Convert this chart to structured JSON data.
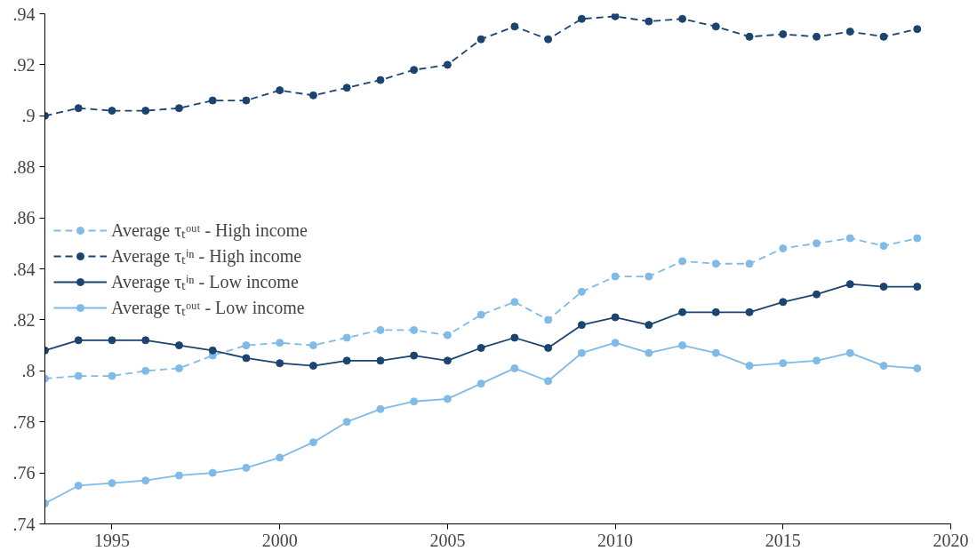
{
  "chart_data": {
    "type": "line",
    "x": [
      1993,
      1994,
      1995,
      1996,
      1997,
      1998,
      1999,
      2000,
      2001,
      2002,
      2003,
      2004,
      2005,
      2006,
      2007,
      2008,
      2009,
      2010,
      2011,
      2012,
      2013,
      2014,
      2015,
      2016,
      2017,
      2018,
      2019
    ],
    "series": [
      {
        "name": "Average τₜᵒᵘᵗ - High income",
        "color": "#7fbbe6",
        "line_style": "dashed",
        "values": [
          0.797,
          0.798,
          0.798,
          0.8,
          0.801,
          0.806,
          0.81,
          0.811,
          0.81,
          0.813,
          0.816,
          0.816,
          0.814,
          0.822,
          0.827,
          0.82,
          0.831,
          0.837,
          0.837,
          0.843,
          0.842,
          0.842,
          0.848,
          0.85,
          0.852,
          0.849,
          0.852
        ]
      },
      {
        "name": "Average τₜⁱⁿ - High income",
        "color": "#1b4470",
        "line_style": "dashed",
        "values": [
          0.9,
          0.903,
          0.902,
          0.902,
          0.903,
          0.906,
          0.906,
          0.91,
          0.908,
          0.911,
          0.914,
          0.918,
          0.92,
          0.93,
          0.935,
          0.93,
          0.938,
          0.939,
          0.937,
          0.938,
          0.935,
          0.931,
          0.932,
          0.931,
          0.933,
          0.931,
          0.934
        ]
      },
      {
        "name": "Average τₜⁱⁿ - Low income",
        "color": "#1b4470",
        "line_style": "solid",
        "values": [
          0.808,
          0.812,
          0.812,
          0.812,
          0.81,
          0.808,
          0.805,
          0.803,
          0.802,
          0.804,
          0.804,
          0.806,
          0.804,
          0.809,
          0.813,
          0.809,
          0.818,
          0.821,
          0.818,
          0.823,
          0.823,
          0.823,
          0.827,
          0.83,
          0.834,
          0.833,
          0.833
        ]
      },
      {
        "name": "Average τₜᵒᵘᵗ - Low income",
        "color": "#7fbbe6",
        "line_style": "solid",
        "values": [
          0.748,
          0.755,
          0.756,
          0.757,
          0.759,
          0.76,
          0.762,
          0.766,
          0.772,
          0.78,
          0.785,
          0.788,
          0.789,
          0.795,
          0.801,
          0.796,
          0.807,
          0.811,
          0.807,
          0.81,
          0.807,
          0.802,
          0.803,
          0.804,
          0.807,
          0.802,
          0.801
        ]
      }
    ],
    "xlim": [
      1993,
      2020
    ],
    "xticks": [
      1995,
      2000,
      2005,
      2010,
      2015,
      2020
    ],
    "ylim": [
      0.74,
      0.94
    ],
    "yticks": [
      {
        "value": 0.74,
        "label": ".74"
      },
      {
        "value": 0.76,
        "label": ".76"
      },
      {
        "value": 0.78,
        "label": ".78"
      },
      {
        "value": 0.8,
        "label": ".8"
      },
      {
        "value": 0.82,
        "label": ".82"
      },
      {
        "value": 0.84,
        "label": ".84"
      },
      {
        "value": 0.86,
        "label": ".86"
      },
      {
        "value": 0.88,
        "label": ".88"
      },
      {
        "value": 0.9,
        "label": ".9"
      },
      {
        "value": 0.92,
        "label": ".92"
      },
      {
        "value": 0.94,
        "label": ".94"
      }
    ],
    "grid": false,
    "legend": "left",
    "marker": "circle"
  }
}
